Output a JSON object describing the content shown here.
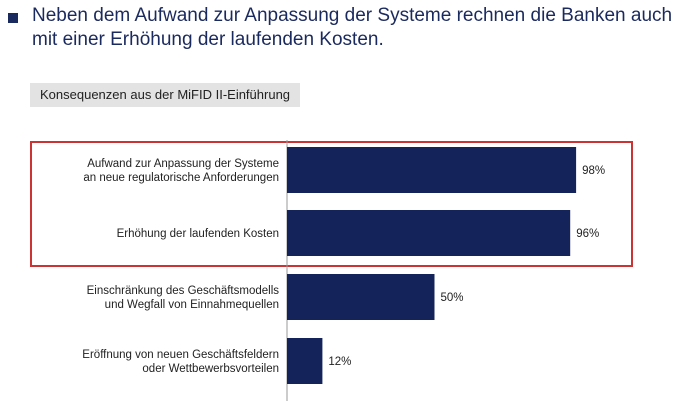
{
  "headline": "Neben dem Aufwand zur Anpassung der Systeme rechnen die Banken auch mit einer Erhöhung der laufenden Kosten.",
  "subtitle": "Konsequenzen aus der MiFID II-Einführung",
  "colors": {
    "bar": "#14245a",
    "highlight_border": "#cc3333",
    "subtitle_bg": "#e3e3e3",
    "headline": "#1b2a5e"
  },
  "highlighted_categories": [
    0,
    1
  ],
  "chart_data": {
    "type": "bar",
    "orientation": "horizontal",
    "categories": [
      [
        "Aufwand zur Anpassung der Systeme",
        "an neue regulatorische Anforderungen"
      ],
      [
        "Erhöhung der laufenden Kosten"
      ],
      [
        "Einschränkung des Geschäftsmodells",
        "und Wegfall von Einnahmequellen"
      ],
      [
        "Eröffnung von neuen Geschäftsfeldern",
        "oder Wettbewerbsvorteilen"
      ]
    ],
    "values": [
      98,
      96,
      50,
      12
    ],
    "value_labels": [
      "98%",
      "96%",
      "50%",
      "12%"
    ],
    "xlim": [
      0,
      100
    ],
    "grid": false,
    "legend": "none"
  }
}
